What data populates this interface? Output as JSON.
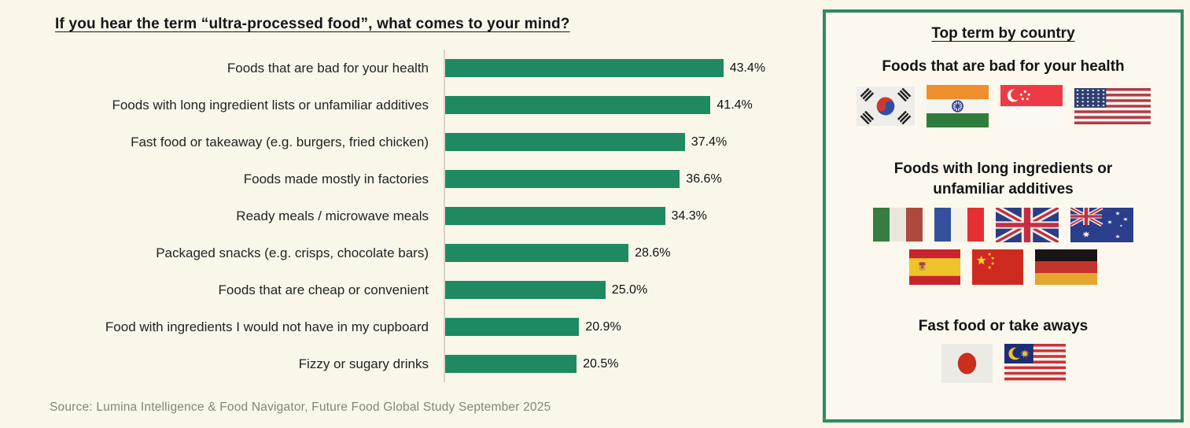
{
  "chart_data": {
    "type": "bar",
    "orientation": "horizontal",
    "title": "If you hear the term “ultra-processed food”, what comes to your mind?",
    "categories": [
      "Foods that are bad for your health",
      "Foods with long ingredient lists or unfamiliar additives",
      "Fast food or takeaway (e.g. burgers, fried chicken)",
      "Foods made mostly in factories",
      "Ready meals / microwave meals",
      "Packaged snacks (e.g. crisps, chocolate bars)",
      "Foods that are cheap or convenient",
      "Food with ingredients I would not have in my cupboard",
      "Fizzy or sugary drinks"
    ],
    "values": [
      43.4,
      41.4,
      37.4,
      36.6,
      34.3,
      28.6,
      25.0,
      20.9,
      20.5
    ],
    "value_labels": [
      "43.4%",
      "41.4%",
      "37.4%",
      "36.6%",
      "34.3%",
      "28.6%",
      "25.0%",
      "20.9%",
      "20.5%"
    ],
    "xlabel": "",
    "ylabel": "",
    "xlim": [
      0,
      50
    ],
    "grid": false,
    "legend": false,
    "bar_color": "#1f8a62"
  },
  "source_note": "Source: Lumina Intelligence & Food Navigator, Future Food Global Study September 2025",
  "panel": {
    "title": "Top term by country",
    "sections": [
      {
        "heading": "Foods that are bad for your health",
        "flag_rows": [
          [
            "south-korea",
            "india",
            "singapore",
            "usa"
          ]
        ]
      },
      {
        "heading": "Foods with long ingredients or unfamiliar additives",
        "flag_rows": [
          [
            "italy",
            "france",
            "united-kingdom",
            "australia"
          ],
          [
            "spain",
            "china",
            "germany"
          ]
        ]
      },
      {
        "heading": "Fast food or take aways",
        "flag_rows": [
          [
            "japan",
            "malaysia"
          ]
        ]
      }
    ]
  },
  "colors": {
    "bar": "#1f8a62",
    "panel_border": "#2e8b64",
    "background": "#faf6ea",
    "axis_line": "#d8d3c6"
  }
}
